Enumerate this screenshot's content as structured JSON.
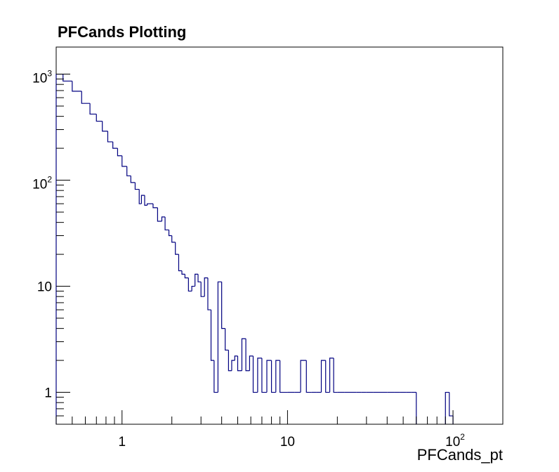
{
  "chart_data": {
    "type": "histogram",
    "title": "PFCands Plotting",
    "xlabel": "PFCands_pt",
    "ylabel": "",
    "x_scale": "log",
    "y_scale": "log",
    "xlim": [
      0.4,
      200
    ],
    "ylim": [
      0.5,
      1800
    ],
    "grid": false,
    "legend": "none",
    "line_color": "#000080",
    "x_tick_labels": [
      {
        "value": 1,
        "base": "1",
        "exp": ""
      },
      {
        "value": 10,
        "base": "10",
        "exp": ""
      },
      {
        "value": 100,
        "base": "10",
        "exp": "2"
      }
    ],
    "y_tick_labels": [
      {
        "value": 1,
        "base": "1",
        "exp": ""
      },
      {
        "value": 10,
        "base": "10",
        "exp": ""
      },
      {
        "value": 100,
        "base": "10",
        "exp": "2"
      },
      {
        "value": 1000,
        "base": "10",
        "exp": "3"
      }
    ],
    "bins": [
      [
        0.0,
        0.44,
        1000
      ],
      [
        0.44,
        0.5,
        860
      ],
      [
        0.5,
        0.57,
        690
      ],
      [
        0.57,
        0.64,
        530
      ],
      [
        0.64,
        0.7,
        420
      ],
      [
        0.7,
        0.76,
        360
      ],
      [
        0.76,
        0.82,
        290
      ],
      [
        0.82,
        0.88,
        230
      ],
      [
        0.88,
        0.94,
        200
      ],
      [
        0.94,
        1.0,
        170
      ],
      [
        1.0,
        1.07,
        135
      ],
      [
        1.07,
        1.13,
        110
      ],
      [
        1.13,
        1.2,
        95
      ],
      [
        1.2,
        1.27,
        82
      ],
      [
        1.27,
        1.31,
        60
      ],
      [
        1.31,
        1.37,
        72
      ],
      [
        1.37,
        1.42,
        58
      ],
      [
        1.42,
        1.46,
        60
      ],
      [
        1.46,
        1.54,
        60
      ],
      [
        1.54,
        1.64,
        55
      ],
      [
        1.64,
        1.74,
        41
      ],
      [
        1.74,
        1.82,
        45
      ],
      [
        1.82,
        1.92,
        34
      ],
      [
        1.92,
        2.0,
        30
      ],
      [
        2.0,
        2.1,
        26
      ],
      [
        2.1,
        2.2,
        20
      ],
      [
        2.2,
        2.3,
        14
      ],
      [
        2.3,
        2.4,
        13
      ],
      [
        2.4,
        2.52,
        12
      ],
      [
        2.52,
        2.64,
        9
      ],
      [
        2.64,
        2.76,
        10
      ],
      [
        2.76,
        2.88,
        13
      ],
      [
        2.88,
        3.0,
        11
      ],
      [
        3.0,
        3.15,
        8
      ],
      [
        3.15,
        3.3,
        12
      ],
      [
        3.3,
        3.45,
        6
      ],
      [
        3.45,
        3.6,
        2
      ],
      [
        3.6,
        3.8,
        1
      ],
      [
        3.8,
        4.0,
        11
      ],
      [
        4.0,
        4.2,
        4
      ],
      [
        4.2,
        4.4,
        2.5
      ],
      [
        4.4,
        4.6,
        1.6
      ],
      [
        4.6,
        4.8,
        2
      ],
      [
        4.8,
        5.0,
        2.2
      ],
      [
        5.0,
        5.3,
        1.6
      ],
      [
        5.3,
        5.6,
        3.2
      ],
      [
        5.6,
        5.9,
        1.6
      ],
      [
        5.9,
        6.2,
        2.2
      ],
      [
        6.2,
        6.6,
        1
      ],
      [
        6.6,
        7.0,
        2.1
      ],
      [
        7.0,
        7.5,
        1
      ],
      [
        7.5,
        8.0,
        2
      ],
      [
        8.0,
        8.5,
        1
      ],
      [
        8.5,
        9.0,
        2
      ],
      [
        9.0,
        10.0,
        1
      ],
      [
        10.0,
        11.0,
        1
      ],
      [
        11.0,
        12.0,
        1
      ],
      [
        12.0,
        13.0,
        2
      ],
      [
        13.0,
        14.0,
        1
      ],
      [
        14.0,
        15.0,
        1
      ],
      [
        15.0,
        16.0,
        1
      ],
      [
        16.0,
        17.0,
        2
      ],
      [
        17.0,
        18.0,
        1
      ],
      [
        18.0,
        19.0,
        2.1
      ],
      [
        19.0,
        20.0,
        1
      ],
      [
        20.0,
        22.0,
        1
      ],
      [
        22.0,
        24.0,
        1
      ],
      [
        24.0,
        26.0,
        1
      ],
      [
        26.0,
        28.0,
        1
      ],
      [
        28.0,
        30.0,
        1
      ],
      [
        30.0,
        33.0,
        1
      ],
      [
        33.0,
        36.0,
        1
      ],
      [
        36.0,
        40.0,
        1
      ],
      [
        40.0,
        44.0,
        1
      ],
      [
        44.0,
        48.0,
        1
      ],
      [
        48.0,
        52.0,
        1
      ],
      [
        52.0,
        56.0,
        1
      ],
      [
        56.0,
        60.0,
        1
      ],
      [
        90.0,
        95.0,
        1
      ],
      [
        95.0,
        100.0,
        0.6
      ]
    ]
  }
}
